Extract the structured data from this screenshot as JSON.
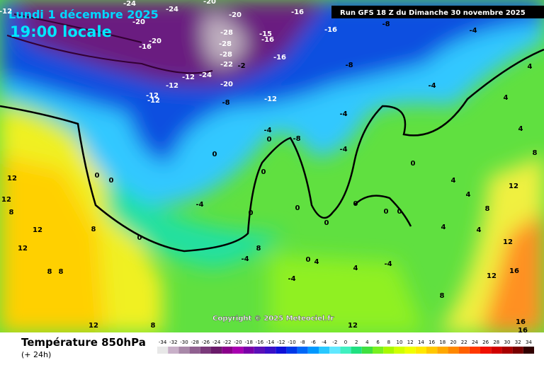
{
  "header": {
    "date": "Lundi 1 décembre 2025",
    "time": "19:00 locale",
    "run": "Run GFS 18 Z du Dimanche 30 novembre 2025"
  },
  "copyright": "Copyright © 2025 Meteociel.fr",
  "footer": {
    "title": "Température 850hPa",
    "step": "(+ 24h)"
  },
  "legend": {
    "values": [
      -34,
      -32,
      -30,
      -28,
      -26,
      -24,
      -22,
      -20,
      -18,
      -16,
      -14,
      -12,
      -10,
      -8,
      -6,
      -4,
      -2,
      0,
      2,
      4,
      6,
      8,
      10,
      12,
      14,
      16,
      18,
      20,
      22,
      24,
      26,
      28,
      30,
      32,
      34
    ],
    "colors": [
      "#e8e8e8",
      "#c8b0c8",
      "#a888a8",
      "#906090",
      "#7a3a7a",
      "#6a1a6a",
      "#8a008a",
      "#a800b0",
      "#7a00a8",
      "#5a10b8",
      "#3a10c8",
      "#1010d8",
      "#0038e8",
      "#0068f8",
      "#0098ff",
      "#28c8ff",
      "#60e8ff",
      "#40f0c0",
      "#20e080",
      "#40e040",
      "#78f020",
      "#a8f800",
      "#d0ff00",
      "#f0ff00",
      "#ffe800",
      "#ffc800",
      "#ffa800",
      "#ff8800",
      "#ff6000",
      "#ff3800",
      "#f01000",
      "#d00000",
      "#a80000",
      "#780000",
      "#300000"
    ]
  },
  "map_labels": [
    -12,
    -24,
    -24,
    -20,
    -16,
    -20,
    -20,
    -28,
    -15,
    -16,
    -16,
    -8,
    -20,
    -16,
    -28,
    -28,
    -12,
    -24,
    -22,
    -2,
    -16,
    -8,
    -4,
    -4,
    4,
    -12,
    -12,
    -12,
    -20,
    -8,
    -12,
    -4,
    -4,
    0,
    -8,
    -4,
    0,
    4,
    4,
    0,
    4,
    8,
    12,
    4,
    12,
    12,
    8,
    12,
    12,
    8,
    8,
    8,
    0,
    0,
    -4,
    0,
    0,
    0,
    0,
    0,
    0,
    0,
    0,
    4,
    4,
    8,
    12,
    16,
    12,
    8,
    -4,
    0,
    4,
    -4,
    -4,
    4,
    8,
    12,
    12,
    8,
    16,
    16
  ]
}
